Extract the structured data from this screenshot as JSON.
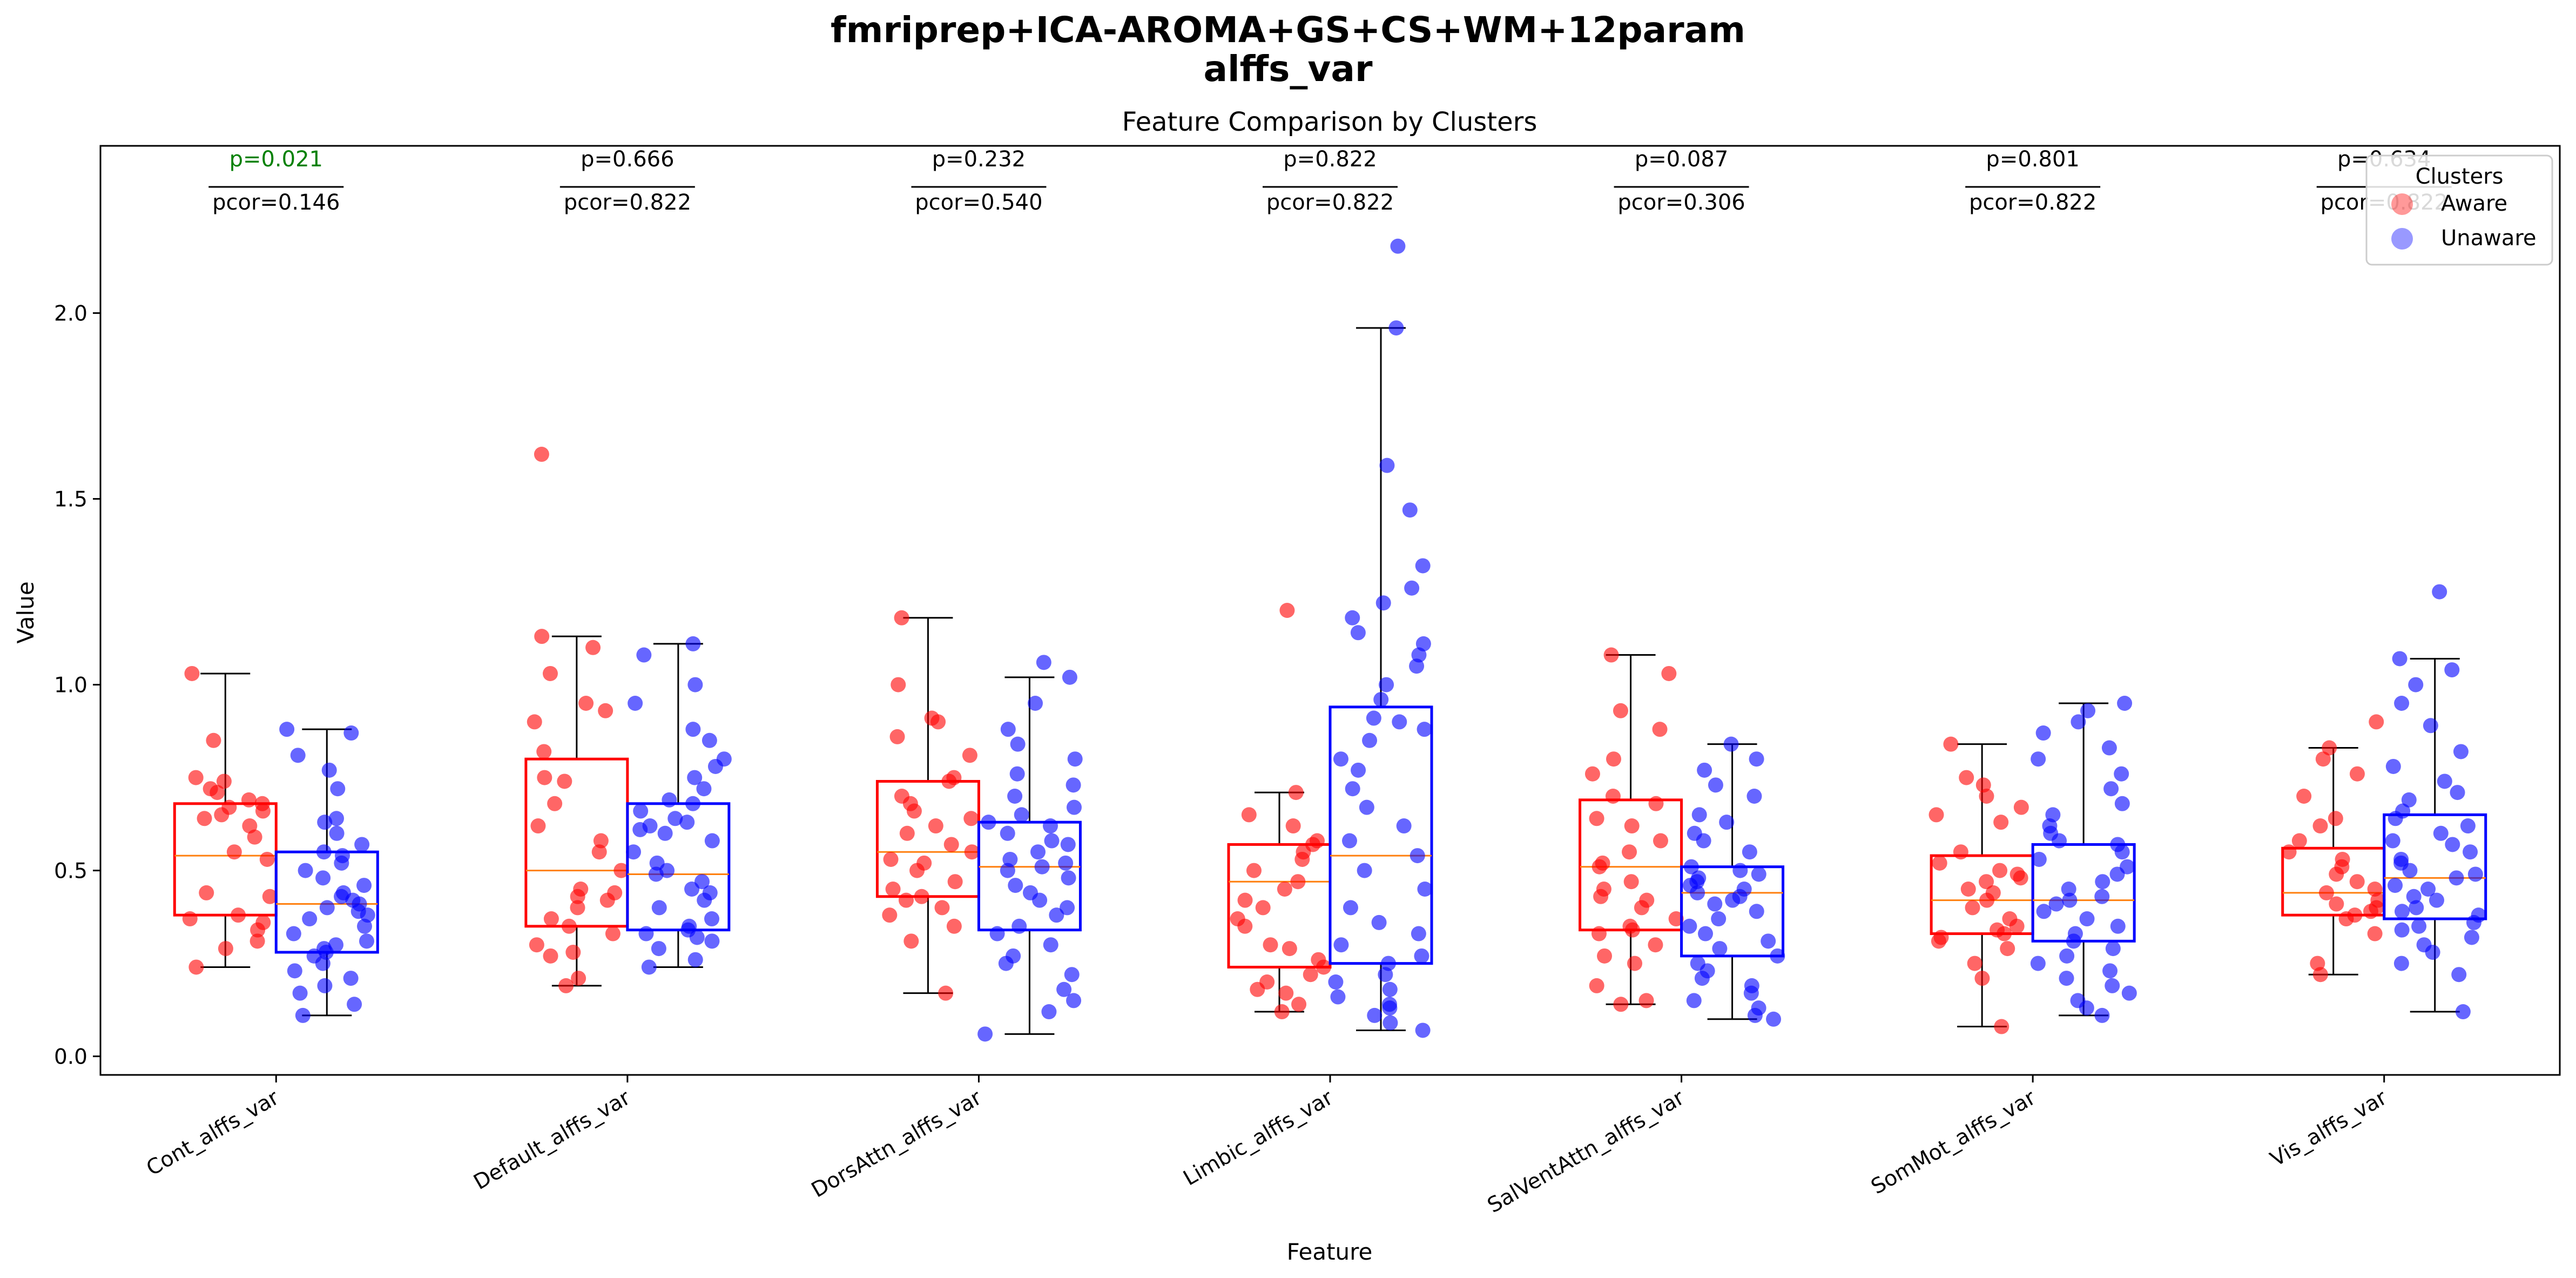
{
  "colors": {
    "aware": "#ff0000",
    "unaware": "#0000ff",
    "median": "#ff7f0e",
    "significant": "#008000",
    "normal": "#000000"
  },
  "chart_data": {
    "type": "box",
    "suptitle_line1": "fmriprep+ICA-AROMA+GS+CS+WM+12param",
    "suptitle_line2": "alffs_var",
    "title": "Feature Comparison by Clusters",
    "xlabel": "Feature",
    "ylabel": "Value",
    "ylim": [
      -0.05,
      2.45
    ],
    "yticks": [
      0.0,
      0.5,
      1.0,
      1.5,
      2.0
    ],
    "ytick_labels": [
      "0.0",
      "0.5",
      "1.0",
      "1.5",
      "2.0"
    ],
    "legend": {
      "title": "Clusters",
      "placement": "top-right",
      "entries": [
        "Aware",
        "Unaware"
      ]
    },
    "grid": false,
    "categories": [
      "Cont_alffs_var",
      "Default_alffs_var",
      "DorsAttn_alffs_var",
      "Limbic_alffs_var",
      "SalVentAttn_alffs_var",
      "SomMot_alffs_var",
      "Vis_alffs_var"
    ],
    "annotations": [
      {
        "p": "p=0.021",
        "pcor": "pcor=0.146",
        "significant": true
      },
      {
        "p": "p=0.666",
        "pcor": "pcor=0.822",
        "significant": false
      },
      {
        "p": "p=0.232",
        "pcor": "pcor=0.540",
        "significant": false
      },
      {
        "p": "p=0.822",
        "pcor": "pcor=0.822",
        "significant": false
      },
      {
        "p": "p=0.087",
        "pcor": "pcor=0.306",
        "significant": false
      },
      {
        "p": "p=0.801",
        "pcor": "pcor=0.822",
        "significant": false
      },
      {
        "p": "p=0.634",
        "pcor": "pcor=0.822",
        "significant": false
      }
    ],
    "series": [
      {
        "name": "Aware",
        "boxes": [
          {
            "q1": 0.38,
            "median": 0.54,
            "q3": 0.68,
            "whislo": 0.24,
            "whishi": 1.03,
            "fliers": []
          },
          {
            "q1": 0.35,
            "median": 0.5,
            "q3": 0.8,
            "whislo": 0.19,
            "whishi": 1.13,
            "fliers": [
              1.62
            ]
          },
          {
            "q1": 0.43,
            "median": 0.55,
            "q3": 0.74,
            "whislo": 0.17,
            "whishi": 1.18,
            "fliers": []
          },
          {
            "q1": 0.24,
            "median": 0.47,
            "q3": 0.57,
            "whislo": 0.12,
            "whishi": 0.71,
            "fliers": [
              1.2
            ]
          },
          {
            "q1": 0.34,
            "median": 0.51,
            "q3": 0.69,
            "whislo": 0.14,
            "whishi": 1.08,
            "fliers": []
          },
          {
            "q1": 0.33,
            "median": 0.42,
            "q3": 0.54,
            "whislo": 0.08,
            "whishi": 0.84,
            "fliers": []
          },
          {
            "q1": 0.38,
            "median": 0.44,
            "q3": 0.56,
            "whislo": 0.22,
            "whishi": 0.83,
            "fliers": [
              0.9
            ]
          }
        ],
        "points": [
          [
            0.24,
            0.29,
            0.31,
            0.34,
            0.36,
            0.37,
            0.38,
            0.43,
            0.44,
            0.53,
            0.55,
            0.59,
            0.62,
            0.64,
            0.65,
            0.66,
            0.67,
            0.68,
            0.69,
            0.71,
            0.72,
            0.74,
            0.75,
            0.85,
            1.03
          ],
          [
            0.19,
            0.21,
            0.27,
            0.28,
            0.3,
            0.33,
            0.35,
            0.37,
            0.4,
            0.42,
            0.43,
            0.44,
            0.45,
            0.5,
            0.55,
            0.58,
            0.62,
            0.68,
            0.74,
            0.75,
            0.82,
            0.9,
            0.93,
            0.95,
            1.03,
            1.1,
            1.13,
            1.62
          ],
          [
            0.17,
            0.31,
            0.35,
            0.38,
            0.4,
            0.42,
            0.43,
            0.45,
            0.47,
            0.5,
            0.52,
            0.53,
            0.55,
            0.57,
            0.6,
            0.62,
            0.64,
            0.66,
            0.68,
            0.7,
            0.74,
            0.75,
            0.81,
            0.86,
            0.9,
            0.91,
            1.0,
            1.18
          ],
          [
            0.12,
            0.14,
            0.17,
            0.18,
            0.2,
            0.22,
            0.24,
            0.26,
            0.29,
            0.3,
            0.35,
            0.37,
            0.4,
            0.42,
            0.45,
            0.47,
            0.5,
            0.53,
            0.55,
            0.57,
            0.58,
            0.62,
            0.65,
            0.71,
            1.2
          ],
          [
            0.14,
            0.15,
            0.19,
            0.25,
            0.27,
            0.3,
            0.33,
            0.34,
            0.35,
            0.37,
            0.4,
            0.42,
            0.43,
            0.45,
            0.47,
            0.51,
            0.52,
            0.55,
            0.58,
            0.62,
            0.64,
            0.68,
            0.7,
            0.76,
            0.8,
            0.88,
            0.93,
            1.03,
            1.08
          ],
          [
            0.08,
            0.21,
            0.25,
            0.29,
            0.31,
            0.32,
            0.33,
            0.34,
            0.35,
            0.37,
            0.4,
            0.42,
            0.44,
            0.45,
            0.47,
            0.48,
            0.49,
            0.5,
            0.52,
            0.55,
            0.63,
            0.65,
            0.67,
            0.7,
            0.73,
            0.75,
            0.84
          ],
          [
            0.22,
            0.25,
            0.33,
            0.37,
            0.38,
            0.39,
            0.4,
            0.41,
            0.42,
            0.44,
            0.45,
            0.47,
            0.49,
            0.51,
            0.53,
            0.55,
            0.58,
            0.62,
            0.64,
            0.7,
            0.76,
            0.8,
            0.83,
            0.9
          ]
        ]
      },
      {
        "name": "Unaware",
        "boxes": [
          {
            "q1": 0.28,
            "median": 0.41,
            "q3": 0.55,
            "whislo": 0.11,
            "whishi": 0.88,
            "fliers": []
          },
          {
            "q1": 0.34,
            "median": 0.49,
            "q3": 0.68,
            "whislo": 0.24,
            "whishi": 1.11,
            "fliers": []
          },
          {
            "q1": 0.34,
            "median": 0.51,
            "q3": 0.63,
            "whislo": 0.06,
            "whishi": 1.02,
            "fliers": []
          },
          {
            "q1": 0.25,
            "median": 0.54,
            "q3": 0.94,
            "whislo": 0.07,
            "whishi": 1.96,
            "fliers": [
              2.18
            ]
          },
          {
            "q1": 0.27,
            "median": 0.44,
            "q3": 0.51,
            "whislo": 0.1,
            "whishi": 0.84,
            "fliers": []
          },
          {
            "q1": 0.31,
            "median": 0.42,
            "q3": 0.57,
            "whislo": 0.11,
            "whishi": 0.95,
            "fliers": []
          },
          {
            "q1": 0.37,
            "median": 0.48,
            "q3": 0.65,
            "whislo": 0.12,
            "whishi": 1.07,
            "fliers": [
              1.25
            ]
          }
        ],
        "points": [
          [
            0.11,
            0.14,
            0.17,
            0.19,
            0.21,
            0.23,
            0.25,
            0.27,
            0.28,
            0.29,
            0.3,
            0.31,
            0.33,
            0.35,
            0.37,
            0.38,
            0.39,
            0.4,
            0.41,
            0.42,
            0.43,
            0.44,
            0.46,
            0.48,
            0.5,
            0.52,
            0.54,
            0.55,
            0.57,
            0.6,
            0.63,
            0.64,
            0.72,
            0.77,
            0.81,
            0.87,
            0.88
          ],
          [
            0.24,
            0.26,
            0.29,
            0.31,
            0.32,
            0.33,
            0.34,
            0.35,
            0.37,
            0.4,
            0.42,
            0.44,
            0.45,
            0.47,
            0.49,
            0.5,
            0.52,
            0.55,
            0.58,
            0.6,
            0.61,
            0.62,
            0.63,
            0.64,
            0.66,
            0.68,
            0.69,
            0.72,
            0.75,
            0.78,
            0.8,
            0.85,
            0.88,
            0.95,
            1.0,
            1.08,
            1.11
          ],
          [
            0.06,
            0.12,
            0.15,
            0.18,
            0.22,
            0.25,
            0.27,
            0.3,
            0.33,
            0.35,
            0.38,
            0.4,
            0.42,
            0.44,
            0.46,
            0.48,
            0.5,
            0.51,
            0.52,
            0.53,
            0.55,
            0.57,
            0.58,
            0.6,
            0.62,
            0.63,
            0.65,
            0.67,
            0.7,
            0.73,
            0.76,
            0.8,
            0.84,
            0.88,
            0.95,
            1.02,
            1.06
          ],
          [
            0.07,
            0.09,
            0.11,
            0.13,
            0.14,
            0.16,
            0.18,
            0.2,
            0.22,
            0.25,
            0.27,
            0.3,
            0.33,
            0.36,
            0.4,
            0.45,
            0.5,
            0.54,
            0.58,
            0.62,
            0.67,
            0.72,
            0.77,
            0.8,
            0.85,
            0.88,
            0.9,
            0.91,
            0.96,
            1.0,
            1.05,
            1.08,
            1.11,
            1.14,
            1.18,
            1.22,
            1.26,
            1.32,
            1.47,
            1.59,
            1.96,
            2.18
          ],
          [
            0.1,
            0.11,
            0.13,
            0.15,
            0.17,
            0.19,
            0.21,
            0.23,
            0.25,
            0.27,
            0.29,
            0.31,
            0.33,
            0.35,
            0.37,
            0.39,
            0.41,
            0.42,
            0.43,
            0.44,
            0.45,
            0.46,
            0.47,
            0.48,
            0.49,
            0.5,
            0.51,
            0.55,
            0.58,
            0.6,
            0.63,
            0.65,
            0.7,
            0.73,
            0.77,
            0.8,
            0.84
          ],
          [
            0.11,
            0.13,
            0.15,
            0.17,
            0.19,
            0.21,
            0.23,
            0.25,
            0.27,
            0.29,
            0.31,
            0.33,
            0.35,
            0.37,
            0.39,
            0.41,
            0.42,
            0.43,
            0.45,
            0.47,
            0.49,
            0.51,
            0.53,
            0.55,
            0.57,
            0.58,
            0.6,
            0.62,
            0.65,
            0.68,
            0.72,
            0.76,
            0.8,
            0.83,
            0.87,
            0.9,
            0.93,
            0.95
          ],
          [
            0.12,
            0.22,
            0.25,
            0.28,
            0.3,
            0.32,
            0.34,
            0.35,
            0.36,
            0.38,
            0.39,
            0.4,
            0.42,
            0.43,
            0.45,
            0.46,
            0.48,
            0.49,
            0.5,
            0.52,
            0.53,
            0.55,
            0.57,
            0.58,
            0.6,
            0.62,
            0.64,
            0.66,
            0.69,
            0.71,
            0.74,
            0.78,
            0.82,
            0.89,
            0.95,
            1.0,
            1.04,
            1.07,
            1.25
          ]
        ]
      }
    ]
  }
}
